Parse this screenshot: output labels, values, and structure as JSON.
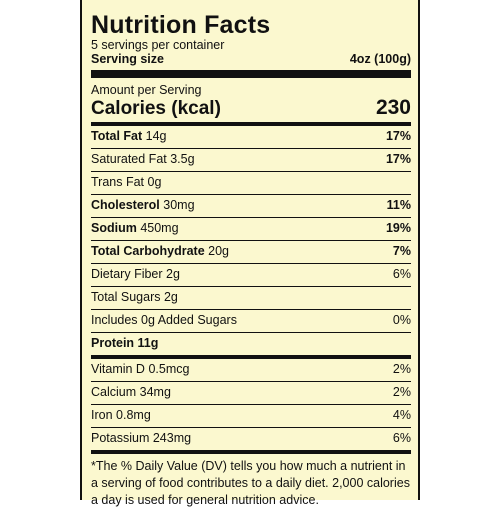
{
  "label": {
    "title": "Nutrition Facts",
    "servings": "5 servings per container",
    "serving_size_label": "Serving size",
    "serving_size_value": "4oz (100g)",
    "amount_per_serving": "Amount per Serving",
    "calories_label": "Calories (kcal)",
    "calories_value": "230",
    "rows": [
      {
        "name": "Total Fat",
        "amount": "14g",
        "dv": "17%"
      },
      {
        "name": "Saturated Fat",
        "amount": "3.5g",
        "dv": "17%"
      },
      {
        "name": "Trans Fat",
        "amount": "0g",
        "dv": ""
      },
      {
        "name": "Cholesterol",
        "amount": "30mg",
        "dv": "11%"
      },
      {
        "name": "Sodium",
        "amount": "450mg",
        "dv": "19%"
      },
      {
        "name": "Total Carbohydrate",
        "amount": "20g",
        "dv": "7%"
      },
      {
        "name": "Dietary Fiber",
        "amount": "2g",
        "dv": "6%"
      },
      {
        "name": "Total Sugars",
        "amount": "2g",
        "dv": ""
      },
      {
        "name": "Includes 0g Added Sugars",
        "amount": "",
        "dv": "0%"
      },
      {
        "name": "Protein",
        "amount": "11g",
        "dv": ""
      },
      {
        "name": "Vitamin D",
        "amount": "0.5mcg",
        "dv": "2%"
      },
      {
        "name": "Calcium",
        "amount": "34mg",
        "dv": "2%"
      },
      {
        "name": "Iron",
        "amount": "0.8mg",
        "dv": "4%"
      },
      {
        "name": "Potassium",
        "amount": "243mg",
        "dv": "6%"
      }
    ],
    "footnote": "*The % Daily Value (DV) tells you how much a nutrient in a serving of food contributes to a daily diet. 2,000 calories a day is used for general nutrition advice."
  }
}
